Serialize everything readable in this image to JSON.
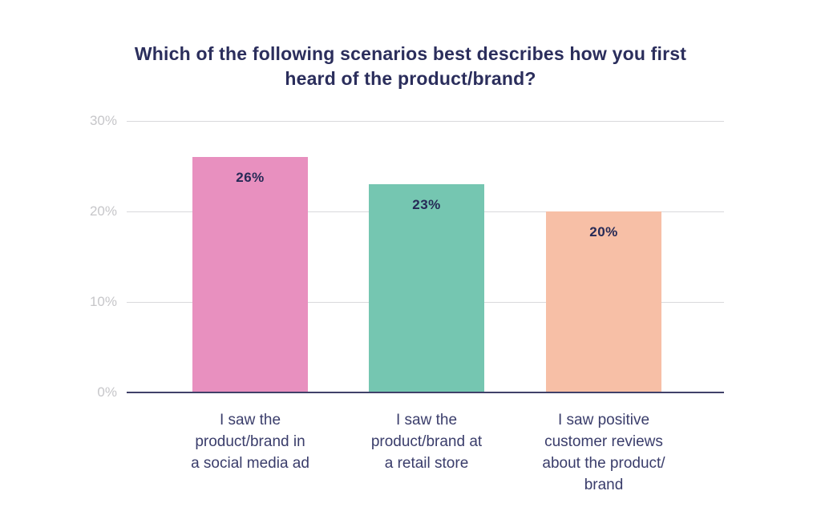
{
  "colors": {
    "background": "#ffffff",
    "title_text": "#2b2e5c",
    "gridline": "#d9d9dc",
    "axis_baseline": "#404169",
    "ytick_text": "#c6c6c9",
    "bar_value_text": "#262a56",
    "category_text": "#3a3d6b"
  },
  "chart_data": {
    "type": "bar",
    "title": "Which of the following scenarios best describes how you first heard of the product/brand?",
    "title_lines": [
      "Which of the following scenarios best describes how you first",
      "heard of the product/brand?"
    ],
    "categories": [
      "I saw the product/brand in a social media ad",
      "I saw the product/brand at a retail store",
      "I saw positive customer reviews about the product/brand"
    ],
    "category_lines": [
      [
        "I saw the",
        "product/brand in",
        "a social media ad"
      ],
      [
        "I saw the",
        "product/brand at",
        "a retail store"
      ],
      [
        "I saw positive",
        "customer reviews",
        "about the product/",
        "brand"
      ]
    ],
    "values": [
      26,
      23,
      20
    ],
    "value_labels": [
      "26%",
      "23%",
      "20%"
    ],
    "bar_colors": [
      "#e890bf",
      "#75c6b1",
      "#f7bfa6"
    ],
    "ytick_values": [
      30,
      20,
      10,
      0
    ],
    "ytick_labels": [
      "30%",
      "20%",
      "10%",
      "0%"
    ],
    "ylim": [
      0,
      30
    ],
    "grid": true,
    "legend": false,
    "xlabel": "",
    "ylabel": ""
  }
}
